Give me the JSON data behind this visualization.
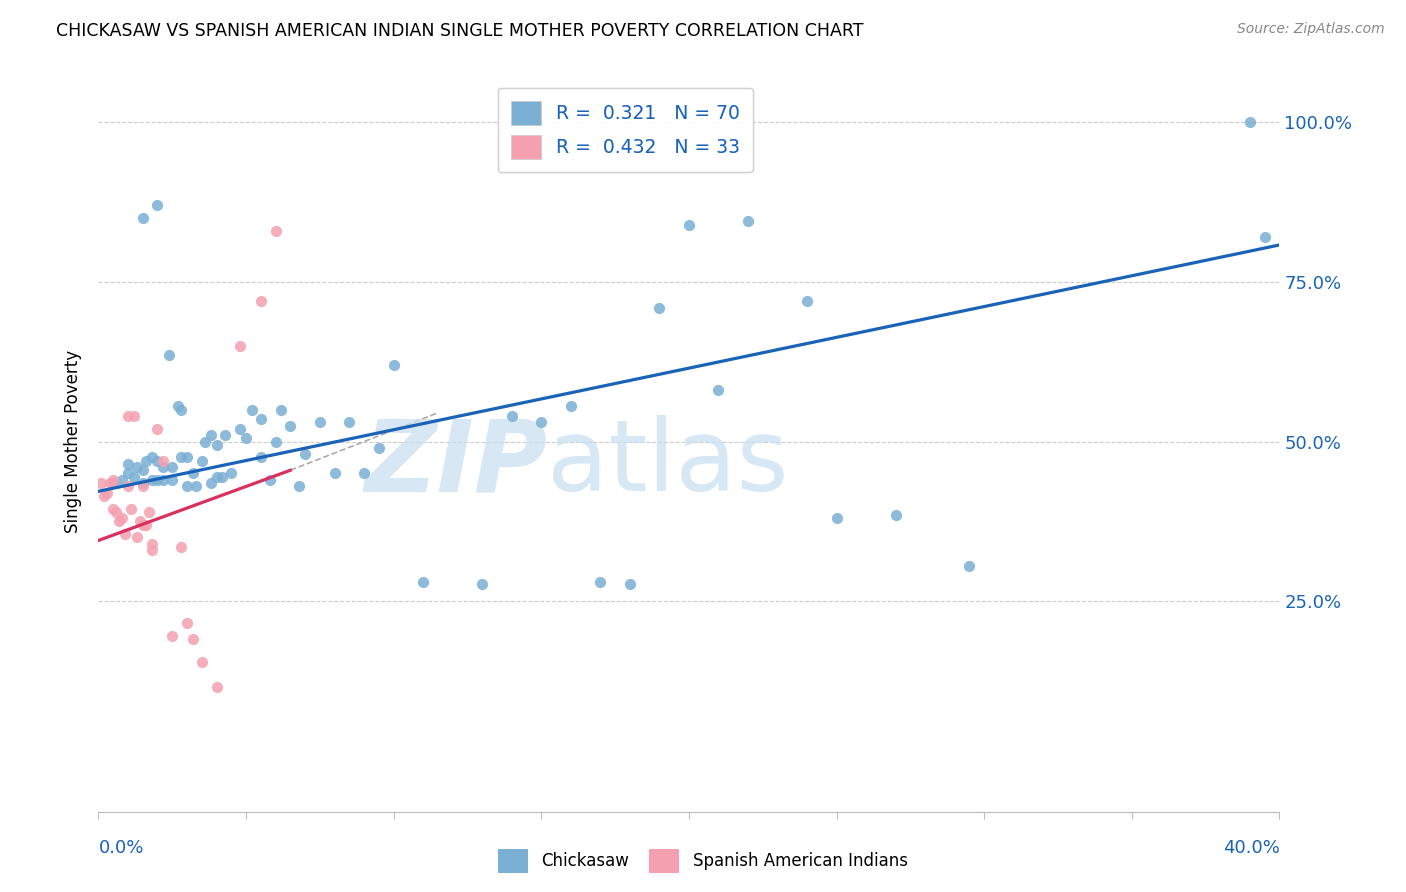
{
  "title": "CHICKASAW VS SPANISH AMERICAN INDIAN SINGLE MOTHER POVERTY CORRELATION CHART",
  "source": "Source: ZipAtlas.com",
  "ylabel": "Single Mother Poverty",
  "ytick_labels": [
    "25.0%",
    "50.0%",
    "75.0%",
    "100.0%"
  ],
  "ytick_values": [
    0.25,
    0.5,
    0.75,
    1.0
  ],
  "xlim": [
    0.0,
    0.4
  ],
  "ylim": [
    -0.08,
    1.08
  ],
  "blue_R": 0.321,
  "blue_N": 70,
  "pink_R": 0.432,
  "pink_N": 33,
  "blue_color": "#7BAFD4",
  "pink_color": "#F4A0B0",
  "blue_line_color": "#1A63B8",
  "pink_line_color": "#D93060",
  "value_color": "#1A63B8",
  "legend_label_blue": "Chickasaw",
  "legend_label_pink": "Spanish American Indians",
  "blue_line_x": [
    0.0,
    0.4
  ],
  "blue_line_y": [
    0.422,
    0.808
  ],
  "pink_line_x": [
    0.0,
    0.065
  ],
  "pink_line_y": [
    0.345,
    0.455
  ],
  "blue_scatter_x": [
    0.005,
    0.008,
    0.01,
    0.01,
    0.012,
    0.013,
    0.015,
    0.015,
    0.016,
    0.018,
    0.018,
    0.02,
    0.02,
    0.022,
    0.022,
    0.024,
    0.025,
    0.025,
    0.027,
    0.028,
    0.028,
    0.03,
    0.03,
    0.032,
    0.033,
    0.035,
    0.036,
    0.038,
    0.038,
    0.04,
    0.04,
    0.042,
    0.043,
    0.045,
    0.048,
    0.05,
    0.052,
    0.055,
    0.055,
    0.058,
    0.06,
    0.062,
    0.065,
    0.068,
    0.07,
    0.075,
    0.08,
    0.085,
    0.09,
    0.095,
    0.1,
    0.11,
    0.13,
    0.14,
    0.15,
    0.16,
    0.17,
    0.18,
    0.19,
    0.2,
    0.21,
    0.22,
    0.24,
    0.25,
    0.27,
    0.295,
    0.39,
    0.395,
    0.02,
    0.015
  ],
  "blue_scatter_y": [
    0.435,
    0.44,
    0.45,
    0.465,
    0.445,
    0.46,
    0.435,
    0.455,
    0.47,
    0.44,
    0.475,
    0.44,
    0.47,
    0.44,
    0.46,
    0.635,
    0.44,
    0.46,
    0.555,
    0.475,
    0.55,
    0.43,
    0.475,
    0.45,
    0.43,
    0.47,
    0.5,
    0.435,
    0.51,
    0.445,
    0.495,
    0.445,
    0.51,
    0.45,
    0.52,
    0.505,
    0.55,
    0.475,
    0.535,
    0.44,
    0.5,
    0.55,
    0.525,
    0.43,
    0.48,
    0.53,
    0.45,
    0.53,
    0.45,
    0.49,
    0.62,
    0.28,
    0.277,
    0.54,
    0.53,
    0.555,
    0.28,
    0.277,
    0.71,
    0.84,
    0.58,
    0.845,
    0.72,
    0.38,
    0.385,
    0.305,
    1.0,
    0.82,
    0.87,
    0.85
  ],
  "pink_scatter_x": [
    0.001,
    0.002,
    0.003,
    0.004,
    0.005,
    0.005,
    0.006,
    0.007,
    0.008,
    0.009,
    0.01,
    0.01,
    0.011,
    0.012,
    0.013,
    0.014,
    0.015,
    0.015,
    0.016,
    0.017,
    0.018,
    0.018,
    0.02,
    0.022,
    0.025,
    0.028,
    0.03,
    0.032,
    0.035,
    0.04,
    0.048,
    0.055,
    0.06
  ],
  "pink_scatter_y": [
    0.435,
    0.415,
    0.42,
    0.435,
    0.395,
    0.44,
    0.39,
    0.375,
    0.38,
    0.355,
    0.54,
    0.43,
    0.395,
    0.54,
    0.35,
    0.375,
    0.43,
    0.37,
    0.37,
    0.39,
    0.34,
    0.33,
    0.52,
    0.47,
    0.195,
    0.335,
    0.215,
    0.19,
    0.155,
    0.115,
    0.65,
    0.72,
    0.83
  ]
}
